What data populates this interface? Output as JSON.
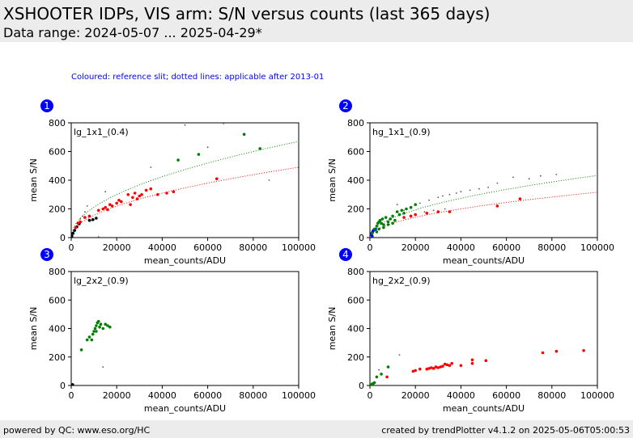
{
  "header": {
    "title": "XSHOOTER IDPs, VIS arm: S/N versus counts (last 365 days)",
    "subtitle": "Data range: 2024-05-07 ... 2025-04-29*"
  },
  "note": "Coloured: reference slit; dotted lines: applicable after 2013-01",
  "footer": {
    "left": "powered by QC: www.eso.org/HC",
    "right": "created by trendPlotter v4.1.2 on 2025-05-06T05:00:53"
  },
  "colors": {
    "green": "#008000",
    "red": "#ff0000",
    "blue": "#0000ff",
    "grey": "#555555",
    "badge": "#0000ff"
  },
  "chart_data": [
    {
      "badge": "1",
      "type": "scatter",
      "label": "lg_1x1_(0.4)",
      "xlabel": "mean_counts/ADU",
      "ylabel": "mean S/N",
      "xlim": [
        0,
        100000
      ],
      "ylim": [
        0,
        800
      ],
      "xticks": [
        0,
        20000,
        40000,
        60000,
        80000,
        100000
      ],
      "yticks": [
        0,
        200,
        400,
        600,
        800
      ],
      "curves": [
        {
          "color": "green",
          "coef": 2.12
        },
        {
          "color": "red",
          "coef": 1.55
        }
      ],
      "series": [
        {
          "color": "grey",
          "points": [
            [
              500,
              20
            ],
            [
              1000,
              40
            ],
            [
              2000,
              70
            ],
            [
              3000,
              100
            ],
            [
              4000,
              130
            ],
            [
              5000,
              150
            ],
            [
              6000,
              180
            ],
            [
              7000,
              220
            ],
            [
              9000,
              120
            ],
            [
              10000,
              125
            ],
            [
              11000,
              130
            ],
            [
              12000,
              5
            ],
            [
              15000,
              320
            ],
            [
              35000,
              490
            ],
            [
              50000,
              785
            ],
            [
              60000,
              630
            ],
            [
              67000,
              795
            ],
            [
              87000,
              400
            ]
          ]
        },
        {
          "color": "black",
          "points": [
            [
              300,
              10
            ],
            [
              800,
              30
            ],
            [
              1500,
              50
            ],
            [
              2500,
              75
            ],
            [
              3500,
              95
            ],
            [
              8000,
              120
            ],
            [
              9500,
              125
            ],
            [
              11000,
              135
            ]
          ]
        },
        {
          "color": "red",
          "points": [
            [
              2000,
              70
            ],
            [
              3000,
              100
            ],
            [
              4000,
              110
            ],
            [
              6000,
              140
            ],
            [
              8000,
              150
            ],
            [
              12000,
              190
            ],
            [
              14000,
              200
            ],
            [
              15000,
              210
            ],
            [
              16000,
              195
            ],
            [
              17000,
              230
            ],
            [
              18000,
              220
            ],
            [
              20000,
              240
            ],
            [
              21000,
              260
            ],
            [
              22000,
              250
            ],
            [
              25000,
              300
            ],
            [
              26000,
              230
            ],
            [
              27000,
              280
            ],
            [
              28000,
              310
            ],
            [
              29000,
              270
            ],
            [
              30000,
              290
            ],
            [
              31000,
              300
            ],
            [
              33000,
              330
            ],
            [
              35000,
              340
            ],
            [
              38000,
              300
            ],
            [
              42000,
              310
            ],
            [
              45000,
              320
            ],
            [
              64000,
              410
            ]
          ]
        },
        {
          "color": "green",
          "points": [
            [
              47000,
              540
            ],
            [
              56000,
              580
            ],
            [
              76000,
              720
            ],
            [
              83000,
              620
            ]
          ]
        }
      ]
    },
    {
      "badge": "2",
      "type": "scatter",
      "label": "hg_1x1_(0.9)",
      "xlabel": "mean_counts/ADU",
      "ylabel": "mean S/N",
      "xlim": [
        0,
        100000
      ],
      "ylim": [
        0,
        800
      ],
      "xticks": [
        0,
        20000,
        40000,
        60000,
        80000,
        100000
      ],
      "yticks": [
        0,
        200,
        400,
        600,
        800
      ],
      "curves": [
        {
          "color": "green",
          "coef": 1.37
        },
        {
          "color": "red",
          "coef": 1.0
        }
      ],
      "series": [
        {
          "color": "grey",
          "points": [
            [
              12000,
              230
            ],
            [
              15000,
              190
            ],
            [
              18000,
              210
            ],
            [
              22000,
              240
            ],
            [
              26000,
              260
            ],
            [
              30000,
              280
            ],
            [
              32000,
              290
            ],
            [
              35000,
              300
            ],
            [
              38000,
              310
            ],
            [
              40000,
              320
            ],
            [
              44000,
              330
            ],
            [
              48000,
              340
            ],
            [
              52000,
              350
            ],
            [
              56000,
              380
            ],
            [
              63000,
              420
            ],
            [
              70000,
              410
            ],
            [
              75000,
              430
            ],
            [
              82000,
              440
            ],
            [
              24000,
              180
            ],
            [
              28000,
              190
            ],
            [
              33000,
              200
            ]
          ]
        },
        {
          "color": "blue",
          "points": [
            [
              500,
              20
            ],
            [
              800,
              30
            ],
            [
              1200,
              40
            ],
            [
              1500,
              50
            ],
            [
              2000,
              55
            ],
            [
              2500,
              60
            ],
            [
              1000,
              10
            ]
          ]
        },
        {
          "color": "green",
          "points": [
            [
              1000,
              30
            ],
            [
              2000,
              60
            ],
            [
              3000,
              80
            ],
            [
              3500,
              100
            ],
            [
              4000,
              110
            ],
            [
              4500,
              120
            ],
            [
              5000,
              100
            ],
            [
              5500,
              130
            ],
            [
              6000,
              90
            ],
            [
              7000,
              140
            ],
            [
              8000,
              110
            ],
            [
              9000,
              130
            ],
            [
              10000,
              150
            ],
            [
              11000,
              120
            ],
            [
              12000,
              180
            ],
            [
              13000,
              160
            ],
            [
              14000,
              190
            ],
            [
              15000,
              170
            ],
            [
              16000,
              200
            ],
            [
              18000,
              210
            ],
            [
              20000,
              230
            ],
            [
              3000,
              40
            ],
            [
              4000,
              60
            ],
            [
              6000,
              70
            ],
            [
              8000,
              90
            ],
            [
              10000,
              100
            ]
          ]
        },
        {
          "color": "red",
          "points": [
            [
              15000,
              140
            ],
            [
              18000,
              150
            ],
            [
              20000,
              160
            ],
            [
              25000,
              170
            ],
            [
              30000,
              180
            ],
            [
              35000,
              180
            ],
            [
              56000,
              220
            ],
            [
              66000,
              270
            ]
          ]
        }
      ]
    },
    {
      "badge": "3",
      "type": "scatter",
      "label": "lg_2x2_(0.9)",
      "xlabel": "mean_counts/ADU",
      "ylabel": "mean S/N",
      "xlim": [
        0,
        100000
      ],
      "ylim": [
        0,
        800
      ],
      "xticks": [
        0,
        20000,
        40000,
        60000,
        80000,
        100000
      ],
      "yticks": [
        0,
        200,
        400,
        600,
        800
      ],
      "curves": [],
      "series": [
        {
          "color": "grey",
          "points": [
            [
              500,
              5
            ],
            [
              1000,
              8
            ],
            [
              14000,
              130
            ]
          ]
        },
        {
          "color": "black",
          "points": [
            [
              200,
              3
            ],
            [
              600,
              6
            ]
          ]
        },
        {
          "color": "green",
          "points": [
            [
              4500,
              250
            ],
            [
              7000,
              320
            ],
            [
              8000,
              340
            ],
            [
              9000,
              320
            ],
            [
              9500,
              360
            ],
            [
              10000,
              380
            ],
            [
              10500,
              400
            ],
            [
              11000,
              420
            ],
            [
              11500,
              440
            ],
            [
              12000,
              450
            ],
            [
              12500,
              410
            ],
            [
              13000,
              430
            ],
            [
              14000,
              400
            ],
            [
              15000,
              430
            ],
            [
              16000,
              420
            ],
            [
              17000,
              410
            ],
            [
              11000,
              380
            ]
          ]
        }
      ]
    },
    {
      "badge": "4",
      "type": "scatter",
      "label": "hg_2x2_(0.9)",
      "xlabel": "mean_counts/ADU",
      "ylabel": "mean S/N",
      "xlim": [
        0,
        100000
      ],
      "ylim": [
        0,
        800
      ],
      "xticks": [
        0,
        20000,
        40000,
        60000,
        80000,
        100000
      ],
      "yticks": [
        0,
        200,
        400,
        600,
        800
      ],
      "curves": [],
      "series": [
        {
          "color": "grey",
          "points": [
            [
              4000,
              110
            ],
            [
              13000,
              215
            ],
            [
              1000,
              15
            ]
          ]
        },
        {
          "color": "green",
          "points": [
            [
              500,
              5
            ],
            [
              1000,
              10
            ],
            [
              1500,
              15
            ],
            [
              2000,
              20
            ],
            [
              3000,
              60
            ],
            [
              5000,
              80
            ],
            [
              8000,
              130
            ]
          ]
        },
        {
          "color": "red",
          "points": [
            [
              7500,
              60
            ],
            [
              19000,
              100
            ],
            [
              20000,
              105
            ],
            [
              22000,
              115
            ],
            [
              25000,
              115
            ],
            [
              26000,
              120
            ],
            [
              27000,
              125
            ],
            [
              28000,
              120
            ],
            [
              29000,
              130
            ],
            [
              30000,
              125
            ],
            [
              31000,
              130
            ],
            [
              32000,
              135
            ],
            [
              33000,
              150
            ],
            [
              34000,
              145
            ],
            [
              35000,
              140
            ],
            [
              36000,
              155
            ],
            [
              40000,
              140
            ],
            [
              45000,
              155
            ],
            [
              45000,
              180
            ],
            [
              51000,
              175
            ],
            [
              76000,
              230
            ],
            [
              82000,
              240
            ],
            [
              94000,
              245
            ]
          ]
        }
      ]
    }
  ]
}
